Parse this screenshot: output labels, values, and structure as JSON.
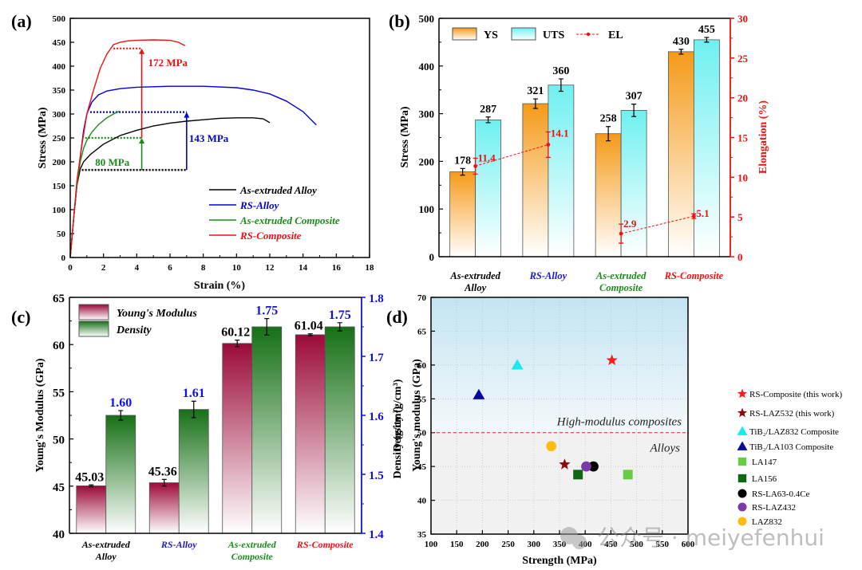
{
  "figure": {
    "panel_labels": [
      "(a)",
      "(b)",
      "(c)",
      "(d)"
    ],
    "watermark": "公众号 · meiyefenhui"
  },
  "chart_data": [
    {
      "id": "a",
      "type": "line",
      "xlabel": "Strain (%)",
      "ylabel": "Stress (MPa)",
      "xlim": [
        0,
        18
      ],
      "ylim": [
        0,
        500
      ],
      "xticks": [
        0,
        2,
        4,
        6,
        8,
        10,
        12,
        14,
        16,
        18
      ],
      "yticks": [
        0,
        50,
        100,
        150,
        200,
        250,
        300,
        350,
        400,
        450,
        500
      ],
      "legend_position": "bottom-right",
      "series": [
        {
          "name": "As-extruded Alloy",
          "color": "#000000",
          "x": [
            0,
            0.2,
            0.4,
            0.6,
            0.8,
            1.2,
            2,
            3,
            4,
            5,
            6,
            7,
            8,
            9,
            10,
            11,
            11.6,
            12
          ],
          "y": [
            0,
            80,
            150,
            185,
            200,
            215,
            237,
            255,
            266,
            275,
            281,
            285,
            288,
            291,
            292,
            292,
            290,
            282
          ]
        },
        {
          "name": "RS-Alloy",
          "color": "#0000dd",
          "x": [
            0,
            0.2,
            0.4,
            0.6,
            0.8,
            1.0,
            1.3,
            1.7,
            2.2,
            3,
            4,
            6,
            8,
            10,
            11,
            12,
            13,
            14,
            14.8
          ],
          "y": [
            0,
            80,
            150,
            210,
            265,
            300,
            325,
            340,
            348,
            353,
            356,
            358,
            358,
            355,
            350,
            342,
            327,
            305,
            277
          ]
        },
        {
          "name": "As-extruded Composite",
          "color": "#1a8a1a",
          "x": [
            0,
            0.2,
            0.4,
            0.6,
            0.8,
            1.0,
            1.3,
            1.7,
            2.2,
            2.7,
            3.0
          ],
          "y": [
            0,
            80,
            150,
            200,
            228,
            245,
            262,
            278,
            292,
            302,
            306
          ]
        },
        {
          "name": "RS-Composite",
          "color": "#ee1111",
          "x": [
            0,
            0.2,
            0.4,
            0.7,
            1.0,
            1.4,
            1.8,
            2.2,
            2.6,
            3.0,
            3.5,
            4,
            5,
            6,
            6.5,
            6.9
          ],
          "y": [
            0,
            80,
            160,
            235,
            300,
            350,
            395,
            425,
            445,
            450,
            453,
            454,
            455,
            454,
            450,
            443
          ]
        }
      ],
      "annotations": [
        {
          "text": "172 MPa",
          "color": "#ee1111",
          "x": 4.3,
          "from": 250,
          "to": 437,
          "level_from_x": 2.6
        },
        {
          "text": "143 MPa",
          "color": "#0000dd",
          "x": 7.0,
          "from": 183,
          "to": 304,
          "level_from_x": 1.2
        },
        {
          "text": "80 MPa",
          "color": "#1a8a1a",
          "x": 4.3,
          "from": 183,
          "to": 250,
          "level_from_x": 0.9
        },
        {
          "text": "",
          "color": "#000000",
          "x": 7.0,
          "from": 183,
          "to": 183,
          "level_from_x": 0.7
        }
      ]
    },
    {
      "id": "b",
      "type": "bar",
      "categories": [
        "As-extruded\nAlloy",
        "RS-Alloy",
        "As-extruded\nComposite",
        "RS-Composite"
      ],
      "category_colors": [
        "#000000",
        "#1a1acc",
        "#1a8a1a",
        "#ee1111"
      ],
      "ylabel": "Stress (MPa)",
      "y2label": "Elongation (%)",
      "ylim": [
        0,
        500
      ],
      "y2lim": [
        0,
        30
      ],
      "yticks": [
        0,
        100,
        200,
        300,
        400,
        500
      ],
      "y2ticks": [
        0,
        5,
        10,
        15,
        20,
        25,
        30
      ],
      "legend_position": "top-left",
      "series": [
        {
          "name": "YS",
          "values": [
            178,
            321,
            258,
            430
          ],
          "errors": [
            7,
            10,
            15,
            5
          ],
          "labels": [
            "178",
            "321",
            "258",
            "430"
          ],
          "color": "#f5a020"
        },
        {
          "name": "UTS",
          "values": [
            287,
            360,
            307,
            455
          ],
          "errors": [
            6,
            13,
            13,
            5
          ],
          "labels": [
            "287",
            "360",
            "307",
            "455"
          ],
          "color": "#7ff0f0"
        }
      ],
      "line_series": {
        "name": "EL",
        "axis": "right",
        "color": "#ee1111",
        "groups": [
          [
            0,
            1
          ],
          [
            2,
            3
          ]
        ],
        "values": [
          11.4,
          14.1,
          2.9,
          5.1
        ],
        "errors": [
          1.0,
          1.6,
          1.2,
          0.3
        ],
        "labels": [
          "11.4",
          "14.1",
          "2.9",
          "5.1"
        ]
      }
    },
    {
      "id": "c",
      "type": "bar",
      "categories": [
        "As-extruded\nAlloy",
        "RS-Alloy",
        "As-extruded\nComposite",
        "RS-Composite"
      ],
      "category_colors": [
        "#000000",
        "#1a1acc",
        "#1a8a1a",
        "#ee1111"
      ],
      "ylabel": "Young's Modulus (GPa)",
      "y2label": "Density (g/cm³)",
      "ylim": [
        40,
        65
      ],
      "y2lim": [
        1.4,
        1.8
      ],
      "yticks": [
        40,
        45,
        50,
        55,
        60,
        65
      ],
      "y2ticks": [
        1.4,
        1.5,
        1.6,
        1.7,
        1.8
      ],
      "legend_position": "top-left",
      "series": [
        {
          "name": "Young's Modulus",
          "axis": "left",
          "values": [
            45.03,
            45.36,
            60.12,
            61.04
          ],
          "errors": [
            0.1,
            0.35,
            0.35,
            0.1
          ],
          "labels": [
            "45.03",
            "45.36",
            "60.12",
            "61.04"
          ],
          "color": "#9b1040",
          "label_color": "#000000"
        },
        {
          "name": "Density",
          "axis": "right",
          "values": [
            1.6,
            1.61,
            1.75,
            1.75
          ],
          "errors": [
            0.008,
            0.014,
            0.014,
            0.007
          ],
          "labels": [
            "1.60",
            "1.61",
            "1.75",
            "1.75"
          ],
          "color": "#1a7a1a",
          "label_color": "#1010dd"
        }
      ]
    },
    {
      "id": "d",
      "type": "scatter",
      "xlabel": "Strength (MPa)",
      "ylabel": "Young's modulus (GPa)",
      "ylabel_overlap": "Density (g/cm³)",
      "xlim": [
        100,
        600
      ],
      "ylim": [
        35,
        70
      ],
      "xticks": [
        100,
        150,
        200,
        250,
        300,
        350,
        400,
        450,
        500,
        550,
        600
      ],
      "yticks": [
        35,
        40,
        45,
        50,
        55,
        60,
        65,
        70
      ],
      "grid": true,
      "threshold": {
        "y": 50,
        "above_label": "High-modulus composites",
        "below_label": "Alloys",
        "color": "#dd2222"
      },
      "legend_position": "right-outside",
      "points": [
        {
          "name": "RS-Composite (this work)",
          "marker": "star",
          "color": "#ff1a1a",
          "x": 452,
          "y": 60.7
        },
        {
          "name": "RS-LAZ532 (this work)",
          "marker": "star",
          "color": "#8b0a0a",
          "x": 360,
          "y": 45.3
        },
        {
          "name": "TiB₂/LAZ832 Composite",
          "marker": "triangle",
          "color": "#1ae8f0",
          "x": 268,
          "y": 60.0
        },
        {
          "name": "TiB₂/LA103 Composite",
          "marker": "triangle",
          "color": "#0a0aa0",
          "x": 193,
          "y": 55.6
        },
        {
          "name": "LA147",
          "marker": "square",
          "color": "#66cc44",
          "x": 483,
          "y": 43.8
        },
        {
          "name": "LA156",
          "marker": "square",
          "color": "#116611",
          "x": 386,
          "y": 43.8
        },
        {
          "name": "RS-LA63-0.4Ce",
          "marker": "circle",
          "color": "#000000",
          "x": 416,
          "y": 45.0
        },
        {
          "name": "RS-LAZ432",
          "marker": "circle",
          "color": "#7a3aaa",
          "x": 402,
          "y": 45.0
        },
        {
          "name": "LAZ832",
          "marker": "circle",
          "color": "#ffbb11",
          "x": 334,
          "y": 48.0
        }
      ]
    }
  ]
}
